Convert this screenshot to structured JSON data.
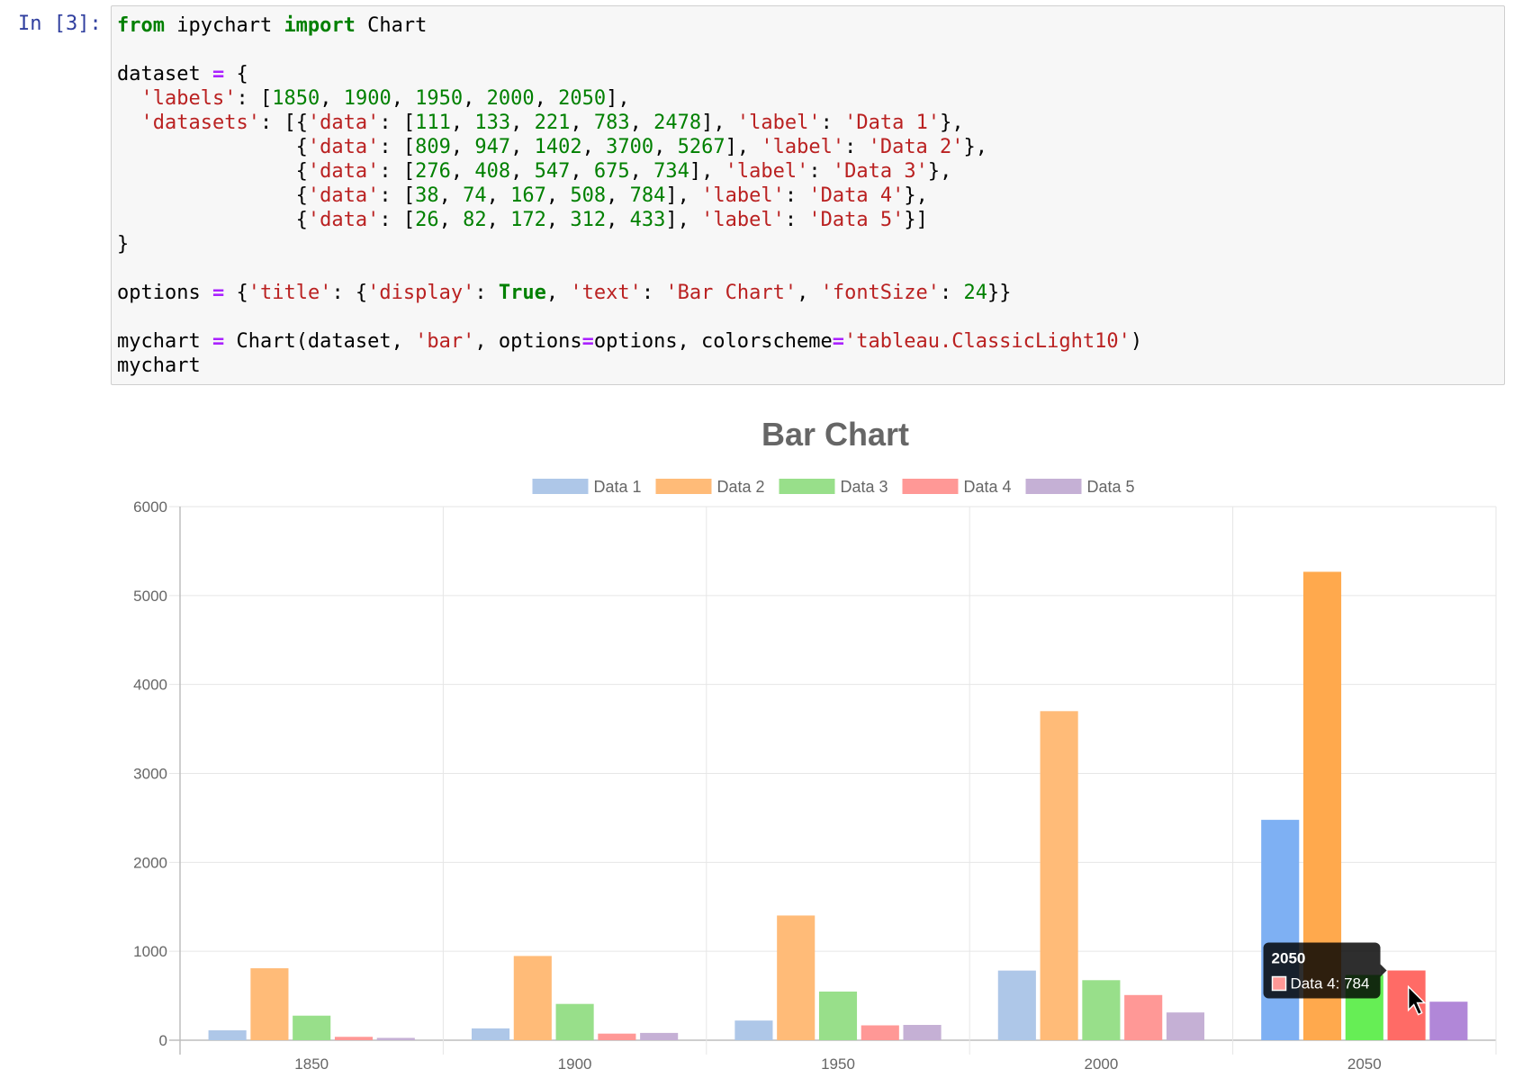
{
  "prompt": "In [3]:",
  "code_lines": [
    [
      [
        "n",
        "from"
      ],
      [
        "t",
        " ipychart "
      ],
      [
        "n",
        "import"
      ],
      [
        "t",
        " Chart"
      ]
    ],
    [],
    [
      [
        "t",
        "dataset "
      ],
      [
        "o",
        "="
      ],
      [
        "t",
        " {"
      ]
    ],
    [
      [
        "t",
        "  "
      ],
      [
        "s",
        "'labels'"
      ],
      [
        "t",
        ": ["
      ],
      [
        "d",
        "1850"
      ],
      [
        "t",
        ", "
      ],
      [
        "d",
        "1900"
      ],
      [
        "t",
        ", "
      ],
      [
        "d",
        "1950"
      ],
      [
        "t",
        ", "
      ],
      [
        "d",
        "2000"
      ],
      [
        "t",
        ", "
      ],
      [
        "d",
        "2050"
      ],
      [
        "t",
        "],"
      ]
    ],
    [
      [
        "t",
        "  "
      ],
      [
        "s",
        "'datasets'"
      ],
      [
        "t",
        ": [{"
      ],
      [
        "s",
        "'data'"
      ],
      [
        "t",
        ": ["
      ],
      [
        "d",
        "111"
      ],
      [
        "t",
        ", "
      ],
      [
        "d",
        "133"
      ],
      [
        "t",
        ", "
      ],
      [
        "d",
        "221"
      ],
      [
        "t",
        ", "
      ],
      [
        "d",
        "783"
      ],
      [
        "t",
        ", "
      ],
      [
        "d",
        "2478"
      ],
      [
        "t",
        "], "
      ],
      [
        "s",
        "'label'"
      ],
      [
        "t",
        ": "
      ],
      [
        "s",
        "'Data 1'"
      ],
      [
        "t",
        "},"
      ]
    ],
    [
      [
        "t",
        "               {"
      ],
      [
        "s",
        "'data'"
      ],
      [
        "t",
        ": ["
      ],
      [
        "d",
        "809"
      ],
      [
        "t",
        ", "
      ],
      [
        "d",
        "947"
      ],
      [
        "t",
        ", "
      ],
      [
        "d",
        "1402"
      ],
      [
        "t",
        ", "
      ],
      [
        "d",
        "3700"
      ],
      [
        "t",
        ", "
      ],
      [
        "d",
        "5267"
      ],
      [
        "t",
        "], "
      ],
      [
        "s",
        "'label'"
      ],
      [
        "t",
        ": "
      ],
      [
        "s",
        "'Data 2'"
      ],
      [
        "t",
        "},"
      ]
    ],
    [
      [
        "t",
        "               {"
      ],
      [
        "s",
        "'data'"
      ],
      [
        "t",
        ": ["
      ],
      [
        "d",
        "276"
      ],
      [
        "t",
        ", "
      ],
      [
        "d",
        "408"
      ],
      [
        "t",
        ", "
      ],
      [
        "d",
        "547"
      ],
      [
        "t",
        ", "
      ],
      [
        "d",
        "675"
      ],
      [
        "t",
        ", "
      ],
      [
        "d",
        "734"
      ],
      [
        "t",
        "], "
      ],
      [
        "s",
        "'label'"
      ],
      [
        "t",
        ": "
      ],
      [
        "s",
        "'Data 3'"
      ],
      [
        "t",
        "},"
      ]
    ],
    [
      [
        "t",
        "               {"
      ],
      [
        "s",
        "'data'"
      ],
      [
        "t",
        ": ["
      ],
      [
        "d",
        "38"
      ],
      [
        "t",
        ", "
      ],
      [
        "d",
        "74"
      ],
      [
        "t",
        ", "
      ],
      [
        "d",
        "167"
      ],
      [
        "t",
        ", "
      ],
      [
        "d",
        "508"
      ],
      [
        "t",
        ", "
      ],
      [
        "d",
        "784"
      ],
      [
        "t",
        "], "
      ],
      [
        "s",
        "'label'"
      ],
      [
        "t",
        ": "
      ],
      [
        "s",
        "'Data 4'"
      ],
      [
        "t",
        "},"
      ]
    ],
    [
      [
        "t",
        "               {"
      ],
      [
        "s",
        "'data'"
      ],
      [
        "t",
        ": ["
      ],
      [
        "d",
        "26"
      ],
      [
        "t",
        ", "
      ],
      [
        "d",
        "82"
      ],
      [
        "t",
        ", "
      ],
      [
        "d",
        "172"
      ],
      [
        "t",
        ", "
      ],
      [
        "d",
        "312"
      ],
      [
        "t",
        ", "
      ],
      [
        "d",
        "433"
      ],
      [
        "t",
        "], "
      ],
      [
        "s",
        "'label'"
      ],
      [
        "t",
        ": "
      ],
      [
        "s",
        "'Data 5'"
      ],
      [
        "t",
        "}]"
      ]
    ],
    [
      [
        "t",
        "}"
      ]
    ],
    [],
    [
      [
        "t",
        "options "
      ],
      [
        "o",
        "="
      ],
      [
        "t",
        " {"
      ],
      [
        "s",
        "'title'"
      ],
      [
        "t",
        ": {"
      ],
      [
        "s",
        "'display'"
      ],
      [
        "t",
        ": "
      ],
      [
        "b",
        "True"
      ],
      [
        "t",
        ", "
      ],
      [
        "s",
        "'text'"
      ],
      [
        "t",
        ": "
      ],
      [
        "s",
        "'Bar Chart'"
      ],
      [
        "t",
        ", "
      ],
      [
        "s",
        "'fontSize'"
      ],
      [
        "t",
        ": "
      ],
      [
        "d",
        "24"
      ],
      [
        "t",
        "}}"
      ]
    ],
    [],
    [
      [
        "t",
        "mychart "
      ],
      [
        "o",
        "="
      ],
      [
        "t",
        " Chart(dataset, "
      ],
      [
        "s",
        "'bar'"
      ],
      [
        "t",
        ", options"
      ],
      [
        "o",
        "="
      ],
      [
        "t",
        "options, colorscheme"
      ],
      [
        "o",
        "="
      ],
      [
        "s",
        "'tableau.ClassicLight10'"
      ],
      [
        "t",
        ")"
      ]
    ],
    [
      [
        "t",
        "mychart"
      ]
    ]
  ],
  "colors": {
    "series": [
      "#aec7e8",
      "#ffbb78",
      "#98df8a",
      "#ff9896",
      "#c5b0d5"
    ],
    "hover": [
      "#7eb0f3",
      "#ffa94d",
      "#66ee55",
      "#ff6b66",
      "#b187d8"
    ]
  },
  "chart_data": {
    "type": "bar",
    "title": "Bar Chart",
    "categories": [
      "1850",
      "1900",
      "1950",
      "2000",
      "2050"
    ],
    "series": [
      {
        "name": "Data 1",
        "values": [
          111,
          133,
          221,
          783,
          2478
        ]
      },
      {
        "name": "Data 2",
        "values": [
          809,
          947,
          1402,
          3700,
          5267
        ]
      },
      {
        "name": "Data 3",
        "values": [
          276,
          408,
          547,
          675,
          734
        ]
      },
      {
        "name": "Data 4",
        "values": [
          38,
          74,
          167,
          508,
          784
        ]
      },
      {
        "name": "Data 5",
        "values": [
          26,
          82,
          172,
          312,
          433
        ]
      }
    ],
    "ylim": [
      0,
      6000
    ],
    "yticks": [
      0,
      1000,
      2000,
      3000,
      4000,
      5000,
      6000
    ],
    "grid": true,
    "legend": "top",
    "hover_category": "2050",
    "tooltip": {
      "title": "2050",
      "label": "Data 4: 784",
      "series_index": 3
    }
  }
}
